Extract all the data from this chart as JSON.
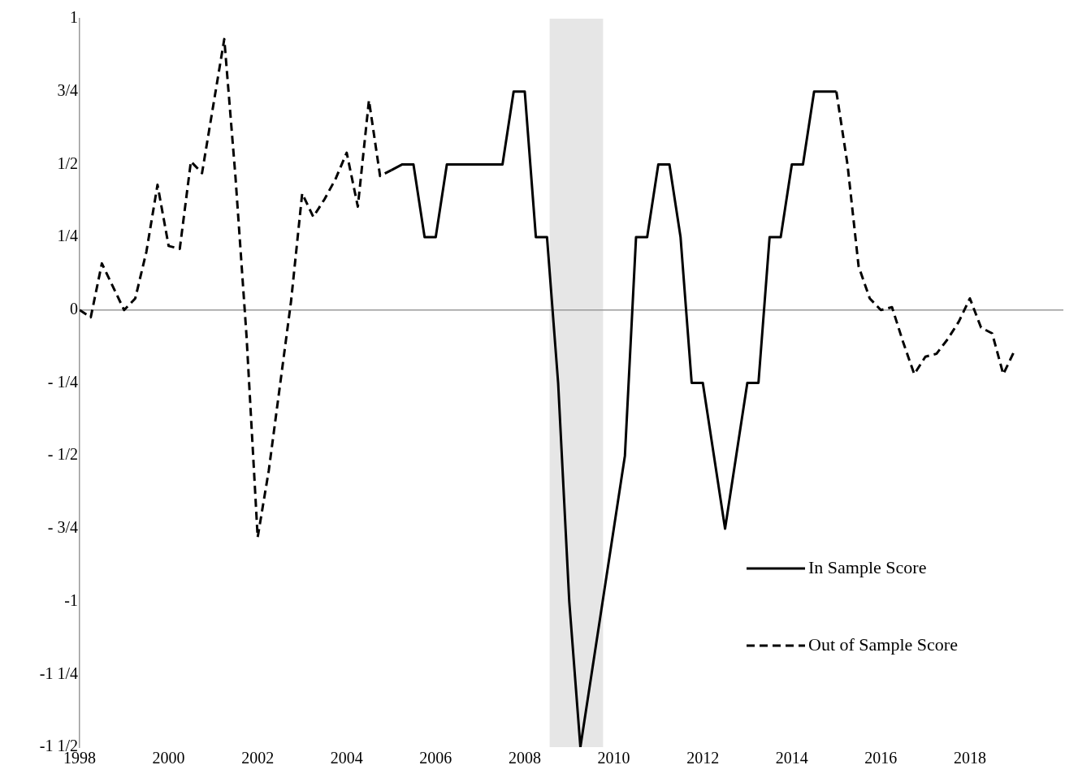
{
  "chart_data": {
    "type": "line",
    "xlim": [
      1998,
      2020.1
    ],
    "xticks": [
      1998,
      2000,
      2002,
      2004,
      2006,
      2008,
      2010,
      2012,
      2014,
      2016,
      2018
    ],
    "ylim": [
      -1.5,
      1
    ],
    "yticks": [
      {
        "value": 1,
        "label": "1"
      },
      {
        "value": 0.75,
        "label": "3/4"
      },
      {
        "value": 0.5,
        "label": "1/2"
      },
      {
        "value": 0.25,
        "label": "1/4"
      },
      0,
      {
        "value": -0.25,
        "label": "- 1/4"
      },
      {
        "value": -0.5,
        "label": "- 1/2"
      },
      {
        "value": -0.75,
        "label": "- 3/4"
      },
      -1,
      {
        "value": -1.25,
        "label": "-1 1/4"
      },
      {
        "value": -1.5,
        "label": "-1 1/2"
      }
    ],
    "grid": false,
    "legend": "bottom right",
    "marker": "none",
    "ref_lines": [
      {
        "axis": "y",
        "value": 0,
        "color": "#999999"
      }
    ],
    "bands": [
      {
        "axis": "x",
        "from": 2008.56,
        "to": 2009.76,
        "color": "#e6e6e6"
      }
    ],
    "series": [
      {
        "name": "In Sample Score",
        "color": "#000000",
        "line_style": "solid",
        "x": [
          2005,
          2005.25,
          2005.5,
          2005.75,
          2006,
          2006.25,
          2006.5,
          2006.75,
          2007,
          2007.25,
          2007.5,
          2007.75,
          2008,
          2008.25,
          2008.5,
          2008.75,
          2009,
          2009.25,
          2009.5,
          2009.75,
          2010,
          2010.25,
          2010.5,
          2010.75,
          2011,
          2011.25,
          2011.5,
          2011.75,
          2012,
          2012.25,
          2012.5,
          2012.75,
          2013,
          2013.25,
          2013.5,
          2013.75,
          2014,
          2014.25,
          2014.5,
          2014.75,
          2015
        ],
        "values": [
          0.48,
          0.5,
          0.5,
          0.25,
          0.25,
          0.5,
          0.5,
          0.5,
          0.5,
          0.5,
          0.5,
          0.75,
          0.75,
          0.25,
          0.25,
          -0.25,
          -1,
          -1.5,
          -1.25,
          -1,
          -0.75,
          -0.5,
          0.25,
          0.25,
          0.5,
          0.5,
          0.25,
          -0.25,
          -0.25,
          -0.5,
          -0.75,
          -0.5,
          -0.25,
          -0.25,
          0.25,
          0.25,
          0.5,
          0.5,
          0.75,
          0.75,
          0.75
        ]
      },
      {
        "name": "Out of Sample Score",
        "color": "#000000",
        "line_style": "dashed",
        "x": [
          1998,
          1998.25,
          1998.5,
          1998.75,
          1999,
          1999.25,
          1999.5,
          1999.75,
          2000,
          2000.25,
          2000.5,
          2000.75,
          2001,
          2001.25,
          2001.5,
          2001.75,
          2002,
          2002.25,
          2002.5,
          2002.75,
          2003,
          2003.25,
          2003.5,
          2003.75,
          2004,
          2004.25,
          2004.5,
          2004.75,
          2005,
          2010,
          2015,
          2015.25,
          2015.5,
          2015.75,
          2016,
          2016.25,
          2016.5,
          2016.75,
          2017,
          2017.25,
          2017.5,
          2017.75,
          2018,
          2018.25,
          2018.5,
          2018.75,
          2019
        ],
        "values": [
          0,
          -0.025,
          0.16,
          0.08,
          0,
          0.04,
          0.2,
          0.43,
          0.22,
          0.21,
          0.51,
          0.47,
          0.7,
          0.93,
          0.46,
          -0.09,
          -0.78,
          -0.55,
          -0.26,
          0.03,
          0.4,
          0.32,
          0.38,
          0.45,
          0.54,
          0.355,
          0.72,
          0.46,
          0.48,
          null,
          0.75,
          0.5,
          0.15,
          0.04,
          0,
          0.01,
          -0.11,
          -0.22,
          -0.16,
          -0.15,
          -0.1,
          -0.04,
          0.04,
          -0.06,
          -0.08,
          -0.22,
          -0.14
        ]
      }
    ]
  }
}
